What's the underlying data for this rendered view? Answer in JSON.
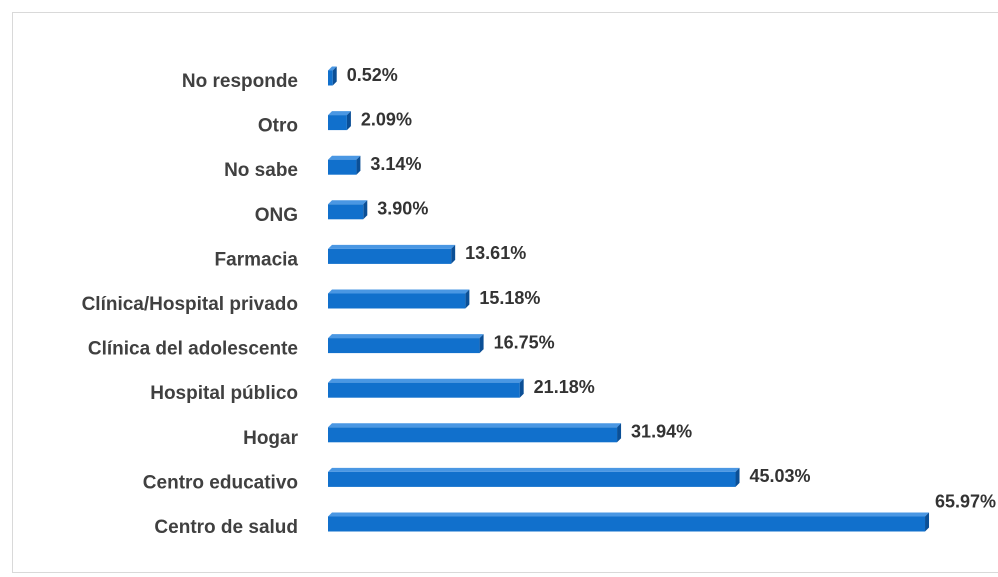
{
  "chart_data": {
    "type": "bar",
    "orientation": "horizontal",
    "color": "#1170cc",
    "categories": [
      "No responde",
      "Otro",
      "No sabe",
      "ONG",
      "Farmacia",
      "Clínica/Hospital privado",
      "Clínica del adolescente",
      "Hospital público",
      "Hogar",
      "Centro educativo",
      "Centro de salud"
    ],
    "values": [
      0.52,
      2.09,
      3.14,
      3.9,
      13.61,
      15.18,
      16.75,
      21.18,
      31.94,
      45.03,
      65.97
    ],
    "value_labels": [
      "0.52%",
      "2.09%",
      "3.14%",
      "3.90%",
      "13.61%",
      "15.18%",
      "16.75%",
      "21.18%",
      "31.94%",
      "45.03%",
      "65.97%"
    ]
  }
}
